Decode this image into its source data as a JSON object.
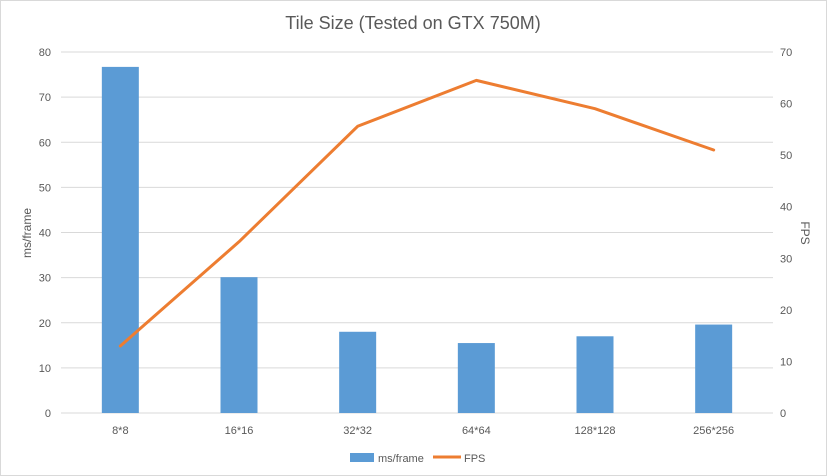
{
  "chart_data": {
    "type": "bar",
    "title": "Tile Size (Tested on GTX 750M)",
    "categories": [
      "8*8",
      "16*16",
      "32*32",
      "64*64",
      "128*128",
      "256*256"
    ],
    "series": [
      {
        "name": "ms/frame",
        "type": "bar",
        "axis": "left",
        "color": "#5b9bd5",
        "values": [
          76.7,
          30.1,
          18.0,
          15.5,
          17.0,
          19.6
        ]
      },
      {
        "name": "FPS",
        "type": "line",
        "axis": "right",
        "color": "#ed7d31",
        "values": [
          13.0,
          33.2,
          55.6,
          64.5,
          59.0,
          51.0
        ]
      }
    ],
    "ylabel": "ms/frame",
    "y2label": "FPS",
    "ylim": [
      0,
      80
    ],
    "y2lim": [
      0,
      70
    ],
    "yticks": [
      "0",
      "10",
      "20",
      "30",
      "40",
      "50",
      "60",
      "70",
      "80"
    ],
    "y2ticks": [
      "0",
      "10",
      "20",
      "30",
      "40",
      "50",
      "60",
      "70"
    ],
    "grid": true,
    "legend_position": "bottom"
  }
}
